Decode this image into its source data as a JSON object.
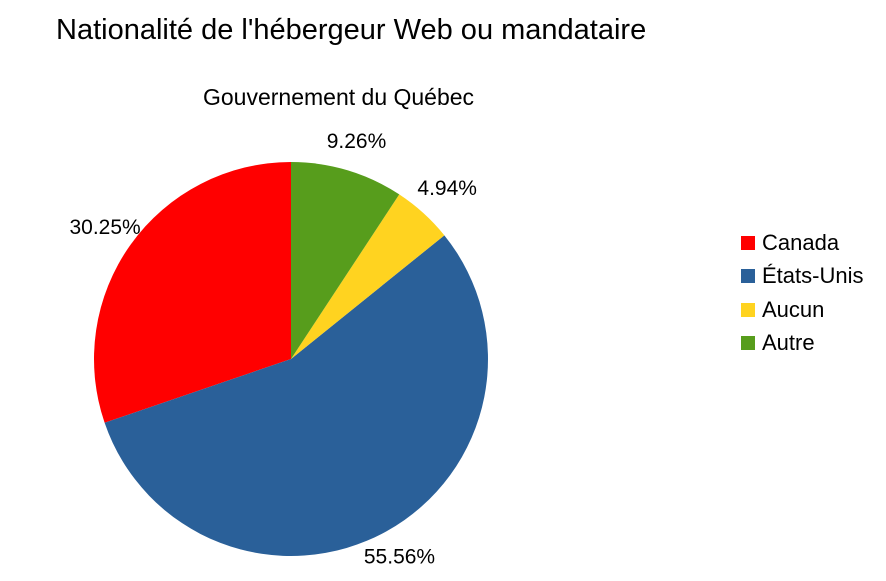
{
  "chart_data": {
    "type": "pie",
    "title": "Nationalité de l'hébergeur Web ou mandataire",
    "subtitle": "Gouvernement du Québec",
    "categories": [
      "Canada",
      "États-Unis",
      "Aucun",
      "Autre"
    ],
    "values": [
      30.25,
      55.56,
      4.94,
      9.26
    ],
    "data_labels": [
      "30.25%",
      "55.56%",
      "4.94%",
      "9.26%"
    ],
    "colors": [
      "#ff0000",
      "#2a6099",
      "#ffd320",
      "#579d1c"
    ],
    "legend_position": "right"
  }
}
